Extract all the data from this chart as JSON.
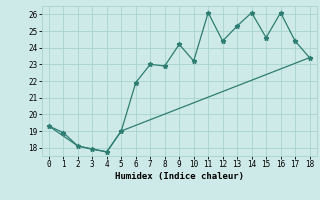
{
  "line1_x": [
    0,
    1,
    2,
    3,
    4,
    5,
    6,
    7,
    8,
    9,
    10,
    11,
    12,
    13,
    14,
    15,
    16,
    17,
    18
  ],
  "line1_y": [
    19.3,
    18.9,
    18.1,
    17.9,
    17.75,
    19.0,
    21.9,
    23.0,
    22.9,
    24.2,
    23.2,
    26.1,
    24.4,
    25.3,
    26.1,
    24.6,
    26.1,
    24.4,
    23.4
  ],
  "line2_x": [
    0,
    2,
    4,
    5,
    18
  ],
  "line2_y": [
    19.3,
    18.1,
    17.75,
    19.0,
    23.4
  ],
  "line_color": "#2e7d72",
  "bg_color": "#ceeae8",
  "grid_color": "#a8d4d0",
  "xlabel": "Humidex (Indice chaleur)",
  "xlim": [
    -0.5,
    18.5
  ],
  "ylim": [
    17.5,
    26.5
  ],
  "yticks": [
    18,
    19,
    20,
    21,
    22,
    23,
    24,
    25,
    26
  ],
  "xticks": [
    0,
    1,
    2,
    3,
    4,
    5,
    6,
    7,
    8,
    9,
    10,
    11,
    12,
    13,
    14,
    15,
    16,
    17,
    18
  ],
  "font_family": "monospace"
}
